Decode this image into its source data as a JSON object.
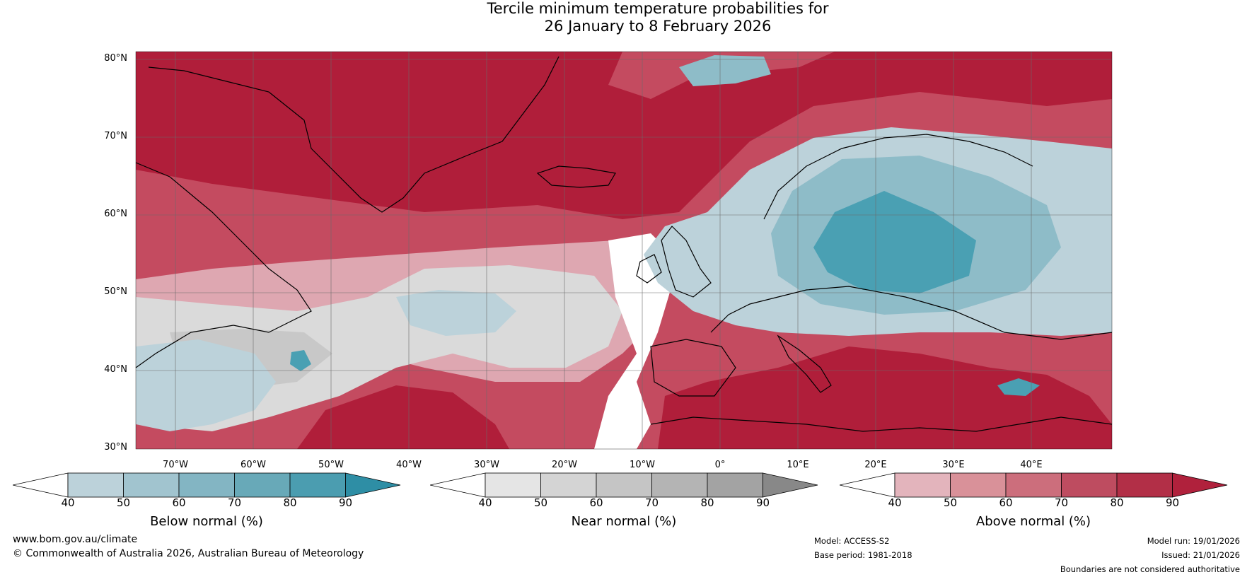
{
  "title_line1": "Tercile minimum temperature probabilities for",
  "title_line2": "26 January to 8 February 2026",
  "lat_labels": [
    "80°N",
    "70°N",
    "60°N",
    "50°N",
    "40°N",
    "30°N"
  ],
  "lon_labels": [
    "70°W",
    "60°W",
    "50°W",
    "40°W",
    "30°W",
    "20°W",
    "10°W",
    "0°",
    "10°E",
    "20°E",
    "30°E",
    "40°E"
  ],
  "colorbars": [
    {
      "caption": "Below normal (%)",
      "ticks": [
        "40",
        "50",
        "60",
        "70",
        "80",
        "90"
      ],
      "colors": [
        "#ffffff",
        "#bcd2da",
        "#a1c4cf",
        "#83b5c3",
        "#68a9b8",
        "#4b9db0",
        "#2e8ea5"
      ]
    },
    {
      "caption": "Near normal (%)",
      "ticks": [
        "40",
        "50",
        "60",
        "70",
        "80",
        "90"
      ],
      "colors": [
        "#ffffff",
        "#e5e5e5",
        "#d4d4d4",
        "#c5c5c5",
        "#b4b4b4",
        "#a3a3a3",
        "#888888"
      ]
    },
    {
      "caption": "Above normal (%)",
      "ticks": [
        "40",
        "50",
        "60",
        "70",
        "80",
        "90"
      ],
      "colors": [
        "#ffffff",
        "#e3b4bc",
        "#d99199",
        "#cc6e7c",
        "#be4c60",
        "#b22f47",
        "#b0213c"
      ]
    }
  ],
  "footer": {
    "url": "www.bom.gov.au/climate",
    "copyright": "© Commonwealth of Australia 2026, Australian Bureau of Meteorology",
    "model": "Model: ACCESS-S2",
    "base_period": "Base period: 1981-2018",
    "model_run": "Model run: 19/01/2026",
    "issued": "Issued: 21/01/2026",
    "disclaimer": "Boundaries are not considered authoritative"
  },
  "map_colors": {
    "above_dark": "#b01e3a",
    "above_mid": "#c44b60",
    "above_light": "#dea7b1",
    "near_light": "#dadada",
    "near_mid": "#c8c8c8",
    "below_light": "#bcd2da",
    "below_mid": "#8ebcc8",
    "below_dark": "#4aa0b3"
  }
}
